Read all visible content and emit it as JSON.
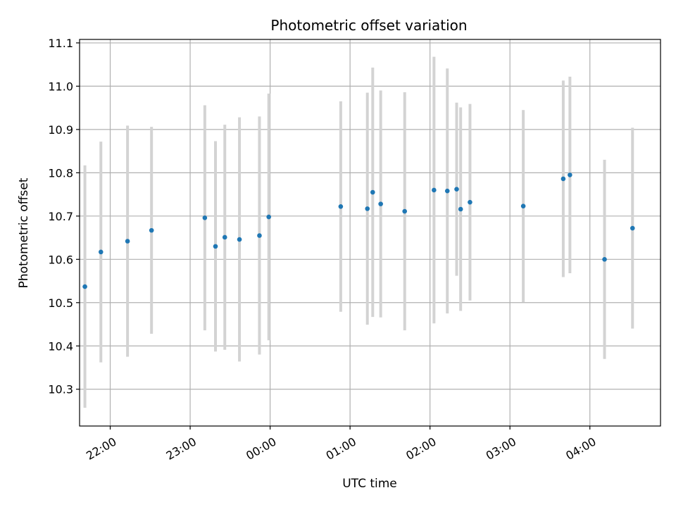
{
  "chart_data": {
    "type": "scatter",
    "title": "Photometric offset variation",
    "xlabel": "UTC time",
    "ylabel": "Photometric offset",
    "grid": true,
    "xlim": [
      "21:37",
      "04:53"
    ],
    "ylim": [
      10.215,
      11.108
    ],
    "x_ticks": [
      "22:00",
      "23:00",
      "00:00",
      "01:00",
      "02:00",
      "03:00",
      "04:00"
    ],
    "y_ticks": [
      "10.3",
      "10.4",
      "10.5",
      "10.6",
      "10.7",
      "10.8",
      "10.9",
      "11.0",
      "11.1"
    ],
    "marker_color": "#1f77b4",
    "errorbar_color": "#d3d3d3",
    "series": [
      {
        "points": [
          {
            "x": "21:41",
            "y": 10.537,
            "err": 0.28
          },
          {
            "x": "21:53",
            "y": 10.617,
            "err": 0.255
          },
          {
            "x": "22:13",
            "y": 10.642,
            "err": 0.267
          },
          {
            "x": "22:31",
            "y": 10.667,
            "err": 0.239
          },
          {
            "x": "23:11",
            "y": 10.696,
            "err": 0.26
          },
          {
            "x": "23:19",
            "y": 10.63,
            "err": 0.243
          },
          {
            "x": "23:26",
            "y": 10.651,
            "err": 0.26
          },
          {
            "x": "23:37",
            "y": 10.646,
            "err": 0.282
          },
          {
            "x": "23:52",
            "y": 10.655,
            "err": 0.275
          },
          {
            "x": "23:59",
            "y": 10.698,
            "err": 0.285
          },
          {
            "x": "00:53",
            "y": 10.722,
            "err": 0.243
          },
          {
            "x": "01:13",
            "y": 10.717,
            "err": 0.268
          },
          {
            "x": "01:17",
            "y": 10.755,
            "err": 0.288
          },
          {
            "x": "01:23",
            "y": 10.728,
            "err": 0.262
          },
          {
            "x": "01:41",
            "y": 10.711,
            "err": 0.275
          },
          {
            "x": "02:03",
            "y": 10.76,
            "err": 0.308
          },
          {
            "x": "02:13",
            "y": 10.758,
            "err": 0.283
          },
          {
            "x": "02:20",
            "y": 10.762,
            "err": 0.2
          },
          {
            "x": "02:23",
            "y": 10.716,
            "err": 0.235
          },
          {
            "x": "02:30",
            "y": 10.732,
            "err": 0.227
          },
          {
            "x": "03:10",
            "y": 10.723,
            "err": 0.222
          },
          {
            "x": "03:40",
            "y": 10.786,
            "err": 0.227
          },
          {
            "x": "03:45",
            "y": 10.795,
            "err": 0.227
          },
          {
            "x": "04:11",
            "y": 10.6,
            "err": 0.23
          },
          {
            "x": "04:32",
            "y": 10.672,
            "err": 0.232
          }
        ]
      }
    ]
  }
}
